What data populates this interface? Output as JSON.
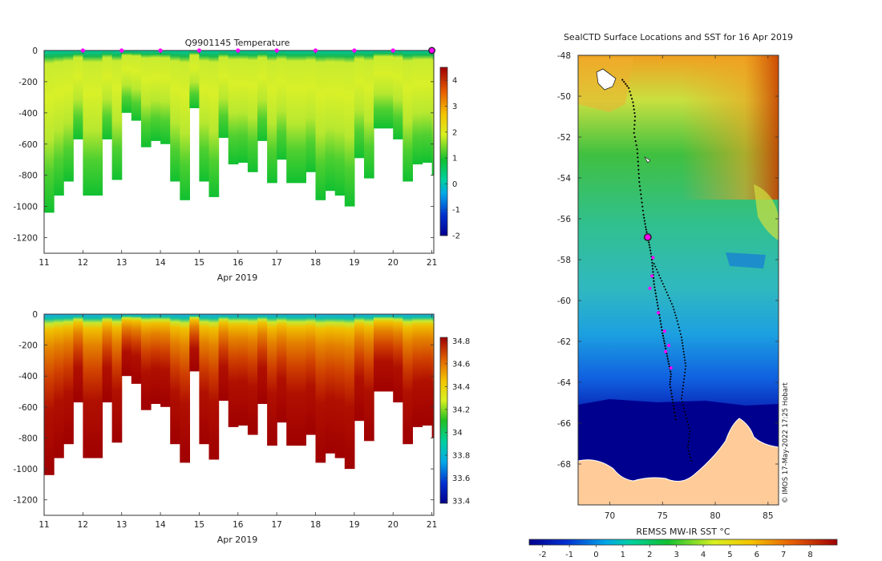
{
  "chart_data": [
    {
      "type": "heatmap",
      "title": "Q9901145  Temperature",
      "xlabel": "Apr 2019",
      "ylabel": "",
      "x_ticks": [
        "11",
        "12",
        "13",
        "14",
        "15",
        "16",
        "17",
        "18",
        "19",
        "20",
        "21"
      ],
      "y_ticks": [
        "0",
        "-200",
        "-400",
        "-600",
        "-800",
        "-1000",
        "-1200"
      ],
      "xlim": [
        11,
        21.05
      ],
      "ylim": [
        -1300,
        0
      ],
      "colorbar_ticks": [
        "4",
        "3",
        "2",
        "1",
        "0",
        "-1",
        "-2"
      ],
      "colorbar_range": [
        -2,
        4.5
      ],
      "profile_markers_x": [
        12,
        13,
        14,
        15,
        16,
        17,
        18,
        19,
        20
      ],
      "highlight_x": 21,
      "profile_x": [
        11.0,
        11.25,
        11.5,
        11.75,
        12.0,
        12.25,
        12.5,
        12.75,
        13.0,
        13.25,
        13.5,
        13.75,
        14.0,
        14.25,
        14.5,
        14.75,
        15.0,
        15.25,
        15.5,
        15.75,
        16.0,
        16.25,
        16.5,
        16.75,
        17.0,
        17.25,
        17.5,
        17.75,
        18.0,
        18.25,
        18.5,
        18.75,
        19.0,
        19.25,
        19.5,
        19.75,
        20.0,
        20.25,
        20.5,
        20.75,
        21.0
      ],
      "profile_max_depth": [
        1040,
        930,
        840,
        570,
        930,
        930,
        570,
        830,
        400,
        450,
        620,
        580,
        600,
        840,
        960,
        370,
        840,
        940,
        560,
        730,
        720,
        780,
        580,
        850,
        700,
        850,
        850,
        780,
        960,
        900,
        930,
        1000,
        690,
        820,
        500,
        500,
        570,
        840,
        730,
        720,
        800
      ]
    },
    {
      "type": "heatmap",
      "title": "",
      "xlabel": "Apr 2019",
      "ylabel": "",
      "x_ticks": [
        "11",
        "12",
        "13",
        "14",
        "15",
        "16",
        "17",
        "18",
        "19",
        "20",
        "21"
      ],
      "y_ticks": [
        "0",
        "-200",
        "-400",
        "-600",
        "-800",
        "-1000",
        "-1200"
      ],
      "xlim": [
        11,
        21.05
      ],
      "ylim": [
        -1300,
        0
      ],
      "colorbar_ticks": [
        "34.8",
        "34.6",
        "34.4",
        "34.2",
        "34",
        "33.8",
        "33.6",
        "33.4"
      ],
      "colorbar_range": [
        33.38,
        34.83
      ]
    },
    {
      "type": "heatmap",
      "title": "SealCTD Surface Locations and SST for 16 Apr 2019",
      "xlabel": "REMSS MW-IR SST °C",
      "ylabel": "",
      "x_ticks": [
        "70",
        "75",
        "80",
        "85"
      ],
      "y_ticks": [
        "-48",
        "-50",
        "-52",
        "-54",
        "-56",
        "-58",
        "-60",
        "-62",
        "-64",
        "-66",
        "-68"
      ],
      "lon_range": [
        67,
        86
      ],
      "lat_range": [
        -70,
        -48
      ],
      "colorbar_ticks": [
        "-2",
        "-1",
        "0",
        "1",
        "2",
        "3",
        "4",
        "5",
        "6",
        "7",
        "8"
      ],
      "colorbar_range": [
        -2.5,
        9
      ],
      "current_position": [
        73.6,
        -56.9
      ],
      "track_lon": [
        71.2,
        71.8,
        72.2,
        72.4,
        72.3,
        72.6,
        72.7,
        72.8,
        73.0,
        73.2,
        73.4,
        73.6,
        73.8,
        74.0,
        74.1,
        74.2,
        74.4,
        74.6,
        74.8,
        75.0,
        75.2,
        75.4,
        75.6,
        75.8,
        75.7,
        75.9,
        76.1,
        76.3
      ],
      "track_lat": [
        -49.2,
        -49.6,
        -50.3,
        -51.0,
        -51.8,
        -52.6,
        -53.4,
        -54.2,
        -55.0,
        -55.8,
        -56.4,
        -56.9,
        -57.4,
        -58.0,
        -58.6,
        -59.2,
        -59.8,
        -60.4,
        -61.0,
        -61.6,
        -62.1,
        -62.6,
        -63.1,
        -63.6,
        -64.1,
        -64.7,
        -65.3,
        -66.0
      ],
      "track2_lon": [
        74.2,
        74.8,
        75.4,
        76.0,
        76.4,
        76.8,
        77.0,
        77.2,
        77.0,
        76.8,
        77.2,
        77.6,
        77.4,
        77.8
      ],
      "track2_lat": [
        -58.2,
        -58.9,
        -59.6,
        -60.3,
        -61.0,
        -61.8,
        -62.5,
        -63.2,
        -64.0,
        -64.8,
        -65.6,
        -66.4,
        -67.2,
        -68.0
      ],
      "magenta_lon": [
        74.1,
        74.0,
        73.8,
        74.6,
        75.2,
        75.6,
        75.3,
        75.8
      ],
      "magenta_lat": [
        -57.9,
        -58.8,
        -59.4,
        -60.6,
        -61.5,
        -62.2,
        -62.5,
        -63.3
      ],
      "credit": "© IMOS 17-May-2022 17:25 Hobart"
    }
  ]
}
